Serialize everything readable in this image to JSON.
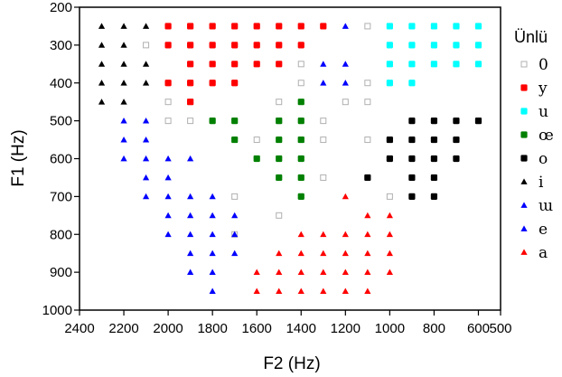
{
  "chart_data": {
    "type": "scatter",
    "title": "",
    "xlabel": "F2 (Hz)",
    "ylabel": "F1 (Hz)",
    "xlim": [
      2400,
      500
    ],
    "ylim": [
      1000,
      200
    ],
    "x_reversed": true,
    "y_reversed": true,
    "grid": false,
    "legend_position": "right",
    "x_ticks": [
      2400,
      2200,
      2000,
      1800,
      1600,
      1400,
      1200,
      1000,
      800,
      600,
      500
    ],
    "y_ticks": [
      200,
      300,
      400,
      500,
      600,
      700,
      800,
      900,
      1000
    ],
    "legend": {
      "title": "Ünlü",
      "entries": [
        {
          "label": "0",
          "marker": "square-open",
          "color": "#b0b0b0"
        },
        {
          "label": "y",
          "marker": "square",
          "color": "#ff0000"
        },
        {
          "label": "u",
          "marker": "square",
          "color": "#00ffff"
        },
        {
          "label": "œ",
          "marker": "square",
          "color": "#008000"
        },
        {
          "label": "o",
          "marker": "square",
          "color": "#000000"
        },
        {
          "label": "i",
          "marker": "triangle",
          "color": "#000000"
        },
        {
          "label": "ɯ",
          "marker": "triangle",
          "color": "#0000ff"
        },
        {
          "label": "e",
          "marker": "triangle",
          "color": "#0000ff"
        },
        {
          "label": "a",
          "marker": "triangle",
          "color": "#ff0000"
        }
      ]
    },
    "series": [
      {
        "name": "0",
        "marker": "square-open",
        "color": "#b0b0b0",
        "points": [
          [
            2100,
            300
          ],
          [
            2000,
            450
          ],
          [
            2000,
            500
          ],
          [
            1900,
            450
          ],
          [
            1900,
            500
          ],
          [
            1700,
            700
          ],
          [
            1700,
            800
          ],
          [
            1600,
            550
          ],
          [
            1500,
            750
          ],
          [
            1500,
            450
          ],
          [
            1500,
            500
          ],
          [
            1400,
            350
          ],
          [
            1400,
            400
          ],
          [
            1400,
            550
          ],
          [
            1300,
            500
          ],
          [
            1300,
            550
          ],
          [
            1300,
            650
          ],
          [
            1200,
            450
          ],
          [
            1100,
            250
          ],
          [
            1100,
            400
          ],
          [
            1100,
            450
          ],
          [
            1100,
            550
          ],
          [
            1000,
            700
          ]
        ]
      },
      {
        "name": "y",
        "marker": "square",
        "color": "#ff0000",
        "points": [
          [
            2000,
            250
          ],
          [
            2000,
            300
          ],
          [
            2000,
            400
          ],
          [
            1900,
            250
          ],
          [
            1900,
            300
          ],
          [
            1900,
            350
          ],
          [
            1900,
            400
          ],
          [
            1900,
            450
          ],
          [
            1800,
            250
          ],
          [
            1800,
            300
          ],
          [
            1800,
            350
          ],
          [
            1800,
            400
          ],
          [
            1700,
            250
          ],
          [
            1700,
            300
          ],
          [
            1700,
            350
          ],
          [
            1700,
            400
          ],
          [
            1600,
            250
          ],
          [
            1600,
            300
          ],
          [
            1600,
            350
          ],
          [
            1500,
            250
          ],
          [
            1500,
            300
          ],
          [
            1500,
            350
          ],
          [
            1400,
            250
          ],
          [
            1400,
            300
          ],
          [
            1300,
            250
          ]
        ]
      },
      {
        "name": "u",
        "marker": "square",
        "color": "#00ffff",
        "points": [
          [
            1000,
            250
          ],
          [
            1000,
            300
          ],
          [
            1000,
            350
          ],
          [
            1000,
            400
          ],
          [
            900,
            250
          ],
          [
            900,
            300
          ],
          [
            900,
            350
          ],
          [
            900,
            400
          ],
          [
            800,
            250
          ],
          [
            800,
            300
          ],
          [
            800,
            350
          ],
          [
            700,
            250
          ],
          [
            700,
            300
          ],
          [
            700,
            350
          ],
          [
            600,
            250
          ],
          [
            600,
            300
          ],
          [
            600,
            350
          ]
        ]
      },
      {
        "name": "œ",
        "marker": "square",
        "color": "#008000",
        "points": [
          [
            1800,
            500
          ],
          [
            1700,
            500
          ],
          [
            1700,
            550
          ],
          [
            1600,
            600
          ],
          [
            1500,
            500
          ],
          [
            1500,
            550
          ],
          [
            1500,
            600
          ],
          [
            1500,
            650
          ],
          [
            1400,
            450
          ],
          [
            1400,
            500
          ],
          [
            1400,
            550
          ],
          [
            1400,
            600
          ],
          [
            1400,
            650
          ],
          [
            1400,
            700
          ]
        ]
      },
      {
        "name": "o",
        "marker": "square",
        "color": "#000000",
        "points": [
          [
            900,
            500
          ],
          [
            800,
            500
          ],
          [
            700,
            500
          ],
          [
            600,
            500
          ],
          [
            1000,
            550
          ],
          [
            900,
            550
          ],
          [
            800,
            550
          ],
          [
            700,
            550
          ],
          [
            1000,
            600
          ],
          [
            900,
            600
          ],
          [
            800,
            600
          ],
          [
            700,
            600
          ],
          [
            1100,
            650
          ],
          [
            900,
            650
          ],
          [
            800,
            650
          ],
          [
            900,
            700
          ],
          [
            800,
            700
          ]
        ]
      },
      {
        "name": "i",
        "marker": "triangle",
        "color": "#000000",
        "points": [
          [
            2300,
            250
          ],
          [
            2200,
            250
          ],
          [
            2100,
            250
          ],
          [
            2300,
            300
          ],
          [
            2200,
            300
          ],
          [
            2300,
            350
          ],
          [
            2200,
            350
          ],
          [
            2100,
            350
          ],
          [
            2300,
            400
          ],
          [
            2200,
            400
          ],
          [
            2100,
            400
          ],
          [
            2300,
            450
          ],
          [
            2200,
            450
          ]
        ]
      },
      {
        "name": "ɯ",
        "marker": "triangle",
        "color": "#0000ff",
        "points": [
          [
            1200,
            250
          ],
          [
            1300,
            350
          ],
          [
            1200,
            350
          ],
          [
            1300,
            400
          ],
          [
            1200,
            400
          ]
        ]
      },
      {
        "name": "e",
        "marker": "triangle",
        "color": "#0000ff",
        "points": [
          [
            2200,
            500
          ],
          [
            2100,
            500
          ],
          [
            2200,
            550
          ],
          [
            2100,
            550
          ],
          [
            2200,
            600
          ],
          [
            2100,
            600
          ],
          [
            2000,
            600
          ],
          [
            1900,
            600
          ],
          [
            2100,
            650
          ],
          [
            2000,
            650
          ],
          [
            2100,
            700
          ],
          [
            2000,
            700
          ],
          [
            1900,
            700
          ],
          [
            1800,
            700
          ],
          [
            2000,
            750
          ],
          [
            1900,
            750
          ],
          [
            1800,
            750
          ],
          [
            1700,
            750
          ],
          [
            2000,
            800
          ],
          [
            1900,
            800
          ],
          [
            1800,
            800
          ],
          [
            1700,
            800
          ],
          [
            1900,
            850
          ],
          [
            1800,
            850
          ],
          [
            1700,
            850
          ],
          [
            1900,
            900
          ],
          [
            1800,
            900
          ],
          [
            1800,
            950
          ]
        ]
      },
      {
        "name": "a",
        "marker": "triangle",
        "color": "#ff0000",
        "points": [
          [
            1200,
            700
          ],
          [
            1400,
            800
          ],
          [
            1300,
            800
          ],
          [
            1200,
            800
          ],
          [
            1100,
            750
          ],
          [
            1000,
            750
          ],
          [
            1100,
            800
          ],
          [
            1000,
            800
          ],
          [
            1500,
            850
          ],
          [
            1400,
            850
          ],
          [
            1300,
            850
          ],
          [
            1200,
            850
          ],
          [
            1100,
            850
          ],
          [
            1000,
            850
          ],
          [
            1600,
            900
          ],
          [
            1500,
            900
          ],
          [
            1400,
            900
          ],
          [
            1300,
            900
          ],
          [
            1200,
            900
          ],
          [
            1100,
            900
          ],
          [
            1000,
            900
          ],
          [
            1600,
            950
          ],
          [
            1500,
            950
          ],
          [
            1400,
            950
          ],
          [
            1300,
            950
          ],
          [
            1200,
            950
          ],
          [
            1100,
            950
          ]
        ]
      }
    ]
  }
}
